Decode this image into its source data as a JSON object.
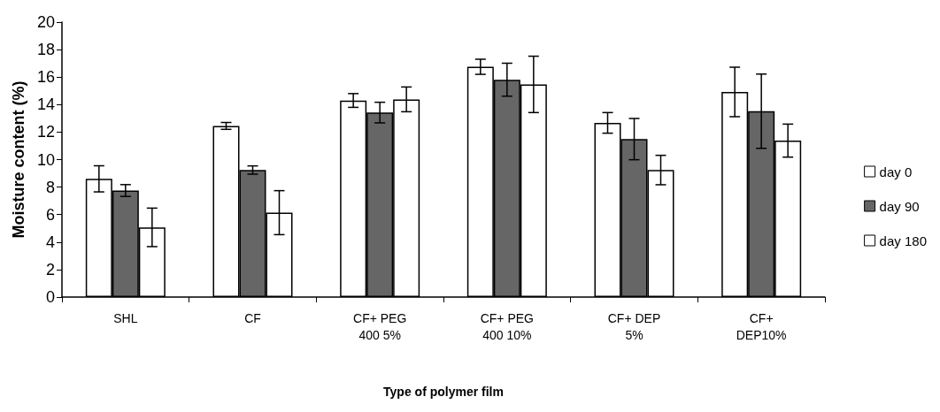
{
  "chart_data": {
    "type": "bar",
    "xlabel": "Type of polymer film",
    "ylabel": "Moisture content (%)",
    "categories": [
      "SHL",
      "CF",
      "CF+ PEG\n400 5%",
      "CF+ PEG\n400 10%",
      "CF+ DEP\n5%",
      "CF+\nDEP10%"
    ],
    "series": [
      {
        "name": "day 0",
        "color": "#ffffff",
        "values": [
          8.6,
          12.45,
          14.3,
          16.75,
          12.67,
          14.92
        ],
        "errors": [
          0.95,
          0.25,
          0.5,
          0.55,
          0.75,
          1.8
        ]
      },
      {
        "name": "day 90",
        "color": "#666666",
        "values": [
          7.75,
          9.24,
          13.42,
          15.81,
          11.49,
          13.52
        ],
        "errors": [
          0.43,
          0.3,
          0.75,
          1.2,
          1.5,
          2.7
        ]
      },
      {
        "name": "day 180",
        "color": "#ffffff",
        "values": [
          5.07,
          6.14,
          14.38,
          15.47,
          9.24,
          11.38
        ],
        "errors": [
          1.4,
          1.6,
          0.9,
          2.05,
          1.07,
          1.2
        ]
      }
    ],
    "ylim": [
      0,
      20
    ],
    "yticks": [
      0,
      2,
      4,
      6,
      8,
      10,
      12,
      14,
      16,
      18,
      20
    ],
    "grid": false,
    "legend": "right"
  }
}
